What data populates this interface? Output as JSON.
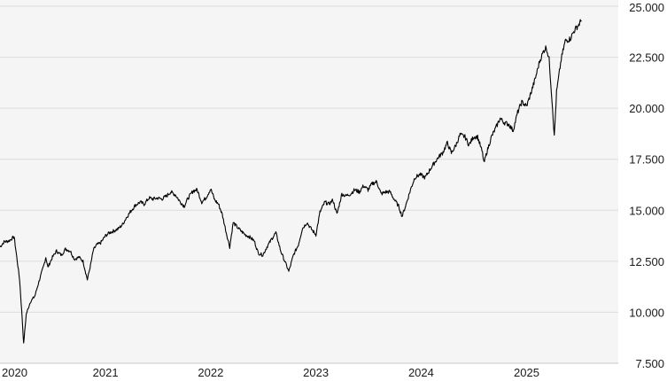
{
  "chart_data": {
    "type": "line",
    "title": "",
    "xlabel": "",
    "ylabel": "",
    "x_ticks": [
      "2020",
      "2021",
      "2022",
      "2023",
      "2024",
      "2025"
    ],
    "y_ticks": [
      "7.500",
      "10.000",
      "12.500",
      "15.000",
      "17.500",
      "20.000",
      "22.500",
      "25.000"
    ],
    "ylim": [
      7500,
      25000
    ],
    "xlim": [
      "2020-01-01",
      "2025-11-15"
    ],
    "grid": "horizontal",
    "y_axis_position": "right",
    "background": "#f5f5f5",
    "line_color": "#000000",
    "series": [
      {
        "x": [
          "2020-01-01",
          "2020-01-15",
          "2020-02-01",
          "2020-02-19",
          "2020-03-01",
          "2020-03-09",
          "2020-03-18",
          "2020-03-23",
          "2020-04-01",
          "2020-04-15",
          "2020-05-01",
          "2020-05-15",
          "2020-06-01",
          "2020-06-08",
          "2020-06-15",
          "2020-07-01",
          "2020-07-15",
          "2020-08-01",
          "2020-08-15",
          "2020-09-01",
          "2020-09-15",
          "2020-10-01",
          "2020-10-15",
          "2020-10-30",
          "2020-11-10",
          "2020-11-20",
          "2020-12-01",
          "2020-12-15",
          "2021-01-01",
          "2021-01-15",
          "2021-02-01",
          "2021-02-15",
          "2021-03-01",
          "2021-03-15",
          "2021-04-01",
          "2021-04-15",
          "2021-05-01",
          "2021-05-15",
          "2021-06-01",
          "2021-06-15",
          "2021-07-01",
          "2021-07-15",
          "2021-08-01",
          "2021-08-15",
          "2021-09-01",
          "2021-09-15",
          "2021-10-01",
          "2021-10-15",
          "2021-11-01",
          "2021-11-15",
          "2021-12-01",
          "2021-12-15",
          "2022-01-01",
          "2022-01-15",
          "2022-01-28",
          "2022-02-10",
          "2022-02-24",
          "2022-03-08",
          "2022-03-20",
          "2022-04-01",
          "2022-04-15",
          "2022-05-01",
          "2022-05-15",
          "2022-06-01",
          "2022-06-15",
          "2022-07-01",
          "2022-07-15",
          "2022-08-01",
          "2022-08-15",
          "2022-09-01",
          "2022-09-15",
          "2022-09-29",
          "2022-10-15",
          "2022-11-01",
          "2022-11-15",
          "2022-12-01",
          "2022-12-15",
          "2023-01-01",
          "2023-01-15",
          "2023-02-01",
          "2023-02-15",
          "2023-03-01",
          "2023-03-15",
          "2023-04-01",
          "2023-04-15",
          "2023-05-01",
          "2023-05-15",
          "2023-06-01",
          "2023-06-15",
          "2023-07-01",
          "2023-07-15",
          "2023-07-31",
          "2023-08-15",
          "2023-09-01",
          "2023-09-15",
          "2023-10-01",
          "2023-10-15",
          "2023-10-27",
          "2023-11-10",
          "2023-11-25",
          "2023-12-10",
          "2023-12-28",
          "2024-01-15",
          "2024-02-01",
          "2024-02-15",
          "2024-03-01",
          "2024-03-15",
          "2024-04-01",
          "2024-04-15",
          "2024-05-01",
          "2024-05-15",
          "2024-06-01",
          "2024-06-15",
          "2024-07-01",
          "2024-07-15",
          "2024-08-01",
          "2024-08-06",
          "2024-08-15",
          "2024-09-01",
          "2024-09-15",
          "2024-10-01",
          "2024-10-15",
          "2024-11-01",
          "2024-11-15",
          "2024-12-01",
          "2024-12-15",
          "2025-01-01",
          "2025-01-15",
          "2025-02-01",
          "2025-02-15",
          "2025-03-01",
          "2025-03-10",
          "2025-03-20",
          "2025-04-01",
          "2025-04-07",
          "2025-04-15",
          "2025-05-01",
          "2025-05-15",
          "2025-06-01",
          "2025-06-15",
          "2025-07-01",
          "2025-07-10"
        ],
        "values": [
          13200,
          13450,
          13500,
          13700,
          12500,
          11600,
          9700,
          8450,
          9900,
          10500,
          10800,
          11500,
          12300,
          12700,
          12200,
          12700,
          13000,
          12800,
          13100,
          13000,
          12600,
          12700,
          12500,
          11600,
          12300,
          13050,
          13300,
          13400,
          13750,
          13900,
          14000,
          14100,
          14300,
          14650,
          15000,
          15250,
          15400,
          15300,
          15600,
          15550,
          15600,
          15550,
          15700,
          15900,
          15750,
          15450,
          15200,
          15600,
          15950,
          16000,
          15400,
          15600,
          16050,
          15500,
          15300,
          14800,
          13900,
          13200,
          14400,
          14200,
          14000,
          13800,
          13700,
          13500,
          12900,
          12800,
          13200,
          13600,
          13900,
          13000,
          12500,
          12000,
          12800,
          13300,
          14100,
          14400,
          14100,
          13800,
          14900,
          15400,
          15300,
          15500,
          14800,
          15800,
          15700,
          15800,
          16000,
          15900,
          16200,
          16000,
          16300,
          16400,
          15800,
          15900,
          15900,
          15500,
          15200,
          14700,
          15300,
          16000,
          16600,
          16750,
          16600,
          17000,
          17300,
          17600,
          17800,
          18300,
          17800,
          18200,
          18700,
          18600,
          18200,
          18600,
          18600,
          17800,
          17300,
          17800,
          18600,
          19000,
          19500,
          19300,
          19200,
          18900,
          19800,
          20300,
          20100,
          20700,
          21500,
          22300,
          22800,
          23000,
          22400,
          20000,
          18600,
          20800,
          22400,
          23300,
          23400,
          23800,
          24100,
          24300
        ]
      }
    ]
  }
}
